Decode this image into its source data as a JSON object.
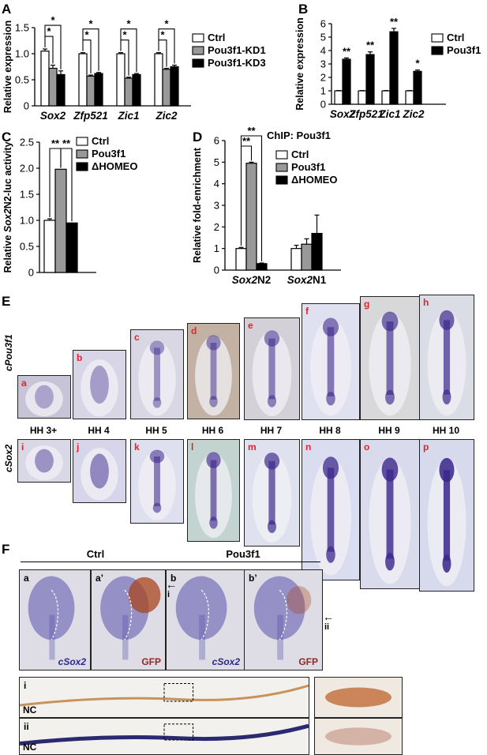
{
  "panels": {
    "A": "A",
    "B": "B",
    "C": "C",
    "D": "D",
    "E": "E",
    "F": "F"
  },
  "chart_data": [
    {
      "type": "bar",
      "panel": "A",
      "ylabel": "Relative expression",
      "ylim": [
        0,
        1.5
      ],
      "yticks": [
        "0",
        "0.5",
        "1.0",
        "1.5"
      ],
      "categories": [
        "Sox2",
        "Zfp521",
        "Zic1",
        "Zic2"
      ],
      "series": [
        {
          "name": "Ctrl",
          "color": "#ffffff",
          "values": [
            1.05,
            1.0,
            1.0,
            1.0
          ],
          "errors": [
            0.04,
            0.02,
            0.02,
            0.02
          ]
        },
        {
          "name": "Pou3f1-KD1",
          "color": "#999999",
          "values": [
            0.72,
            0.57,
            0.53,
            0.7
          ],
          "errors": [
            0.06,
            0.02,
            0.02,
            0.02
          ]
        },
        {
          "name": "Pou3f1-KD3",
          "color": "#000000",
          "values": [
            0.6,
            0.62,
            0.6,
            0.75
          ],
          "errors": [
            0.07,
            0.02,
            0.02,
            0.03
          ]
        }
      ],
      "significance": [
        "*",
        "*"
      ]
    },
    {
      "type": "bar",
      "panel": "B",
      "ylabel": "Relative expression",
      "ylim": [
        0,
        6
      ],
      "yticks": [
        "0",
        "1",
        "2",
        "3",
        "4",
        "5",
        "6"
      ],
      "categories": [
        "Sox2",
        "Zfp521",
        "Zic1",
        "Zic2"
      ],
      "series": [
        {
          "name": "Ctrl",
          "color": "#ffffff",
          "values": [
            1.0,
            1.0,
            1.0,
            1.0
          ],
          "errors": [
            0.02,
            0.02,
            0.02,
            0.02
          ]
        },
        {
          "name": "Pou3f1",
          "color": "#000000",
          "values": [
            3.35,
            3.7,
            5.4,
            2.45
          ],
          "errors": [
            0.1,
            0.2,
            0.25,
            0.1
          ]
        }
      ],
      "significance": [
        "**",
        "**",
        "**",
        "*"
      ]
    },
    {
      "type": "bar",
      "panel": "C",
      "ylabel_pre": "Relative ",
      "ylabel_it": "Sox2",
      "ylabel_post": "N2-luc activity",
      "ylim": [
        0,
        2.5
      ],
      "yticks": [
        "0",
        "0.5",
        "1.0",
        "1.5",
        "2.0",
        "2.5"
      ],
      "series": [
        {
          "name": "Ctrl",
          "color": "#ffffff",
          "values": [
            1.0
          ],
          "errors": [
            0.03
          ]
        },
        {
          "name": "Pou3f1",
          "color": "#999999",
          "values": [
            1.98
          ],
          "errors": [
            0.0
          ]
        },
        {
          "name": "ΔHOMEO",
          "color": "#000000",
          "values": [
            0.95
          ],
          "errors": [
            0.0
          ]
        }
      ],
      "significance": [
        "**",
        "**"
      ]
    },
    {
      "type": "bar",
      "panel": "D",
      "title": "ChIP: Pou3f1",
      "ylabel": "Relative fold-enrichment",
      "ylim": [
        0,
        6
      ],
      "yticks": [
        "0",
        "1",
        "2",
        "3",
        "4",
        "5",
        "6"
      ],
      "categories": [
        "Sox2N2",
        "Sox2N1"
      ],
      "category_it": [
        "Sox2",
        "Sox2"
      ],
      "category_post": [
        "N2",
        "N1"
      ],
      "series": [
        {
          "name": "Ctrl",
          "color": "#ffffff",
          "values": [
            1.0,
            1.0
          ],
          "errors": [
            0.05,
            0.15
          ]
        },
        {
          "name": "Pou3f1",
          "color": "#999999",
          "values": [
            4.95,
            1.2
          ],
          "errors": [
            0.05,
            0.25
          ]
        },
        {
          "name": "ΔHOMEO",
          "color": "#000000",
          "values": [
            0.3,
            1.7
          ],
          "errors": [
            0.03,
            0.85
          ]
        }
      ],
      "significance": [
        "**",
        "**"
      ]
    }
  ],
  "panelE": {
    "row1_label": "cPou3f1",
    "row2_label": "cSox2",
    "stages": [
      "HH 3+",
      "HH 4",
      "HH 5",
      "HH 6",
      "HH 7",
      "HH 8",
      "HH 9",
      "HH 10"
    ],
    "row1_letters": [
      "a",
      "b",
      "c",
      "d",
      "e",
      "f",
      "g",
      "h"
    ],
    "row2_letters": [
      "i",
      "j",
      "k",
      "l",
      "m",
      "n",
      "o",
      "p"
    ]
  },
  "panelF": {
    "group1": "Ctrl",
    "group2": "Pou3f1",
    "letters": [
      "a",
      "a’",
      "b",
      "b’"
    ],
    "stains": [
      "cSox2",
      "GFP",
      "cSox2",
      "GFP"
    ],
    "arrows": [
      "i",
      "ii"
    ],
    "sections": [
      "i",
      "ii"
    ],
    "nc": "NC"
  }
}
